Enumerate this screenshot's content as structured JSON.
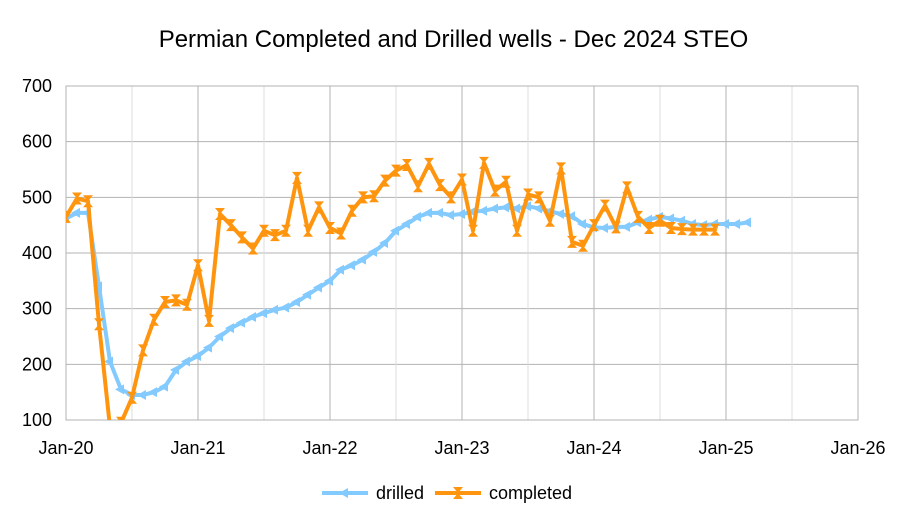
{
  "chart_data": {
    "type": "line",
    "title": "Permian Completed and Drilled wells - Dec 2024 STEO",
    "xlabel": "",
    "ylabel": "",
    "ylim": [
      100,
      700
    ],
    "y_ticks": [
      "100",
      "200",
      "300",
      "400",
      "500",
      "600",
      "700"
    ],
    "x_ticks": [
      "Jan-20",
      "Jan-21",
      "Jan-22",
      "Jan-23",
      "Jan-24",
      "Jan-25",
      "Jan-26"
    ],
    "x_start": "2020-01",
    "grid": true,
    "legend_position": "bottom",
    "series": [
      {
        "name": "drilled",
        "color": "#83caff",
        "values": [
          462,
          472,
          472,
          340,
          205,
          155,
          145,
          145,
          150,
          160,
          190,
          205,
          215,
          230,
          250,
          265,
          275,
          285,
          292,
          298,
          302,
          312,
          325,
          338,
          350,
          370,
          378,
          388,
          402,
          418,
          440,
          452,
          465,
          472,
          472,
          468,
          470,
          474,
          476,
          480,
          482,
          480,
          484,
          480,
          475,
          470,
          466,
          452,
          446,
          445,
          447,
          447,
          455,
          460,
          465,
          462,
          458,
          452,
          450,
          452,
          452,
          452,
          455
        ]
      },
      {
        "name": "completed",
        "color": "#ff950e",
        "values": [
          465,
          498,
          493,
          272,
          87,
          95,
          140,
          225,
          280,
          312,
          315,
          307,
          378,
          278,
          470,
          450,
          428,
          408,
          440,
          432,
          440,
          535,
          440,
          482,
          445,
          435,
          476,
          500,
          502,
          530,
          548,
          558,
          520,
          560,
          522,
          500,
          532,
          440,
          562,
          512,
          528,
          440,
          505,
          500,
          458,
          552,
          420,
          413,
          450,
          485,
          446,
          518,
          465,
          445,
          458,
          445,
          443,
          442,
          442,
          442
        ]
      }
    ]
  }
}
